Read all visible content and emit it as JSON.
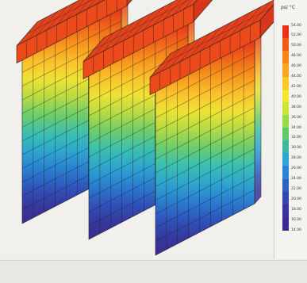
{
  "legend": {
    "title": "ρs/ °C",
    "colors": [
      "#e8321b",
      "#f05a16",
      "#f5841a",
      "#f8a620",
      "#fbc82a",
      "#f7e431",
      "#cfe43a",
      "#9ad948",
      "#62c868",
      "#3ab8a0",
      "#2ea6cf",
      "#2a86d4",
      "#2d62c2",
      "#3445ad",
      "#38349c",
      "#3a2c8f"
    ],
    "labels": [
      "54.00",
      "52.00",
      "50.00",
      "48.00",
      "46.00",
      "44.00",
      "42.00",
      "40.00",
      "38.00",
      "36.00",
      "34.00",
      "32.00",
      "30.00",
      "28.00",
      "26.00",
      "24.00",
      "22.00",
      "20.00",
      "18.00",
      "16.00",
      "14.00"
    ]
  },
  "walls": {
    "count": 3,
    "gradient": [
      "#3a2c8f",
      "#36389e",
      "#2e55bb",
      "#2a7fd0",
      "#2ea6cf",
      "#3bc0b0",
      "#6ccd6a",
      "#b5db44",
      "#eee234",
      "#fbc02a",
      "#f6921b",
      "#f0601a",
      "#e8321b"
    ]
  }
}
